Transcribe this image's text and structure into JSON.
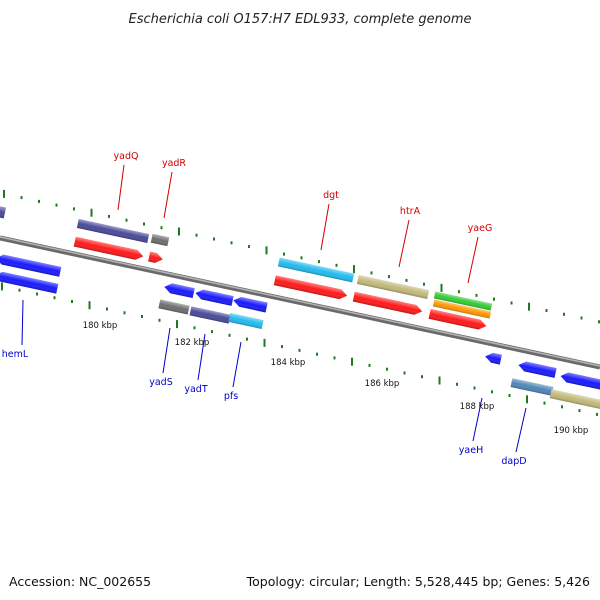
{
  "title": "Escherichia coli O157:H7 EDL933, complete genome",
  "footer": {
    "accession": "Accession: NC_002655",
    "summary": "Topology: circular; Length: 5,528,445 bp; Genes: 5,426"
  },
  "scale_labels": [
    "180 kbp",
    "182 kbp",
    "184 kbp",
    "186 kbp",
    "188 kbp",
    "190 kbp"
  ],
  "colors": {
    "backbone": "#8a8a8a",
    "tick": "#1f7a1f",
    "forward_label": "#d40000",
    "reverse_label": "#0000cc",
    "red": "#ff1a1a",
    "blue": "#1a1aff",
    "dark_blue": "#4a4a9a",
    "cyan": "#22bbee",
    "khaki": "#c2b97a",
    "gray": "#6e6e6e",
    "green": "#33cc33",
    "orange": "#ff9900",
    "steel": "#4f86b8"
  },
  "forward_genes": [
    {
      "name": "yadQ",
      "color": "dark_blue",
      "track": "outer"
    },
    {
      "name": "yadQ",
      "color": "red",
      "track": "inner"
    },
    {
      "name": "yadR",
      "color": "gray",
      "track": "outer"
    },
    {
      "name": "yadR",
      "color": "red",
      "track": "inner"
    },
    {
      "name": "dgt",
      "color": "cyan",
      "track": "outer"
    },
    {
      "name": "dgt",
      "color": "red",
      "track": "inner"
    },
    {
      "name": "htrA",
      "color": "khaki",
      "track": "outer"
    },
    {
      "name": "htrA",
      "color": "red",
      "track": "inner"
    },
    {
      "name": "yaeG",
      "color": "green",
      "track": "outer"
    },
    {
      "name": "yaeG",
      "color": "orange",
      "track": "middle"
    },
    {
      "name": "yaeG",
      "color": "red",
      "track": "inner"
    }
  ],
  "reverse_genes": [
    {
      "name": "hemL",
      "color": "blue"
    },
    {
      "name": "yadS",
      "color": "blue"
    },
    {
      "name": "yadT",
      "color": "blue"
    },
    {
      "name": "pfs",
      "color": "blue"
    },
    {
      "name": "yaeH",
      "color": "blue"
    },
    {
      "name": "dapD",
      "color": "blue"
    }
  ],
  "gene_labels": [
    {
      "name": "yadQ",
      "strand": "forward"
    },
    {
      "name": "yadR",
      "strand": "forward"
    },
    {
      "name": "dgt",
      "strand": "forward"
    },
    {
      "name": "htrA",
      "strand": "forward"
    },
    {
      "name": "yaeG",
      "strand": "forward"
    },
    {
      "name": "hemL",
      "strand": "reverse"
    },
    {
      "name": "yadS",
      "strand": "reverse"
    },
    {
      "name": "yadT",
      "strand": "reverse"
    },
    {
      "name": "pfs",
      "strand": "reverse"
    },
    {
      "name": "yaeH",
      "strand": "reverse"
    },
    {
      "name": "dapD",
      "strand": "reverse"
    }
  ]
}
